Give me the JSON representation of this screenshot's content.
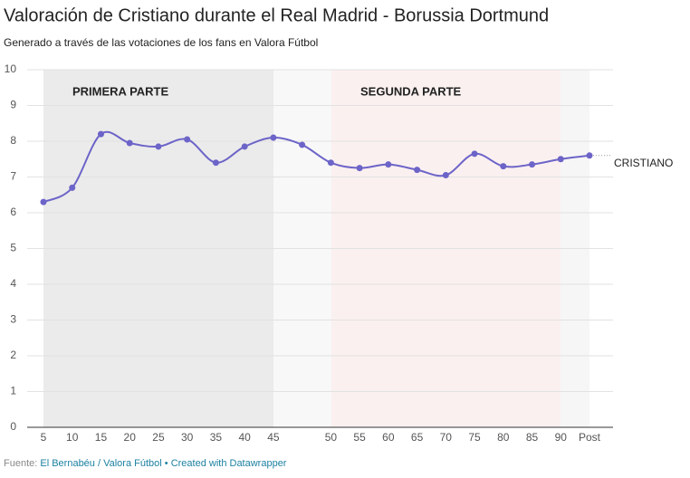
{
  "chart_data": {
    "type": "line",
    "title": "Valoración de Cristiano durante el Real Madrid - Borussia Dortmund",
    "subtitle": "Generado a través de las votaciones de los fans en Valora Fútbol",
    "categories": [
      "5",
      "10",
      "15",
      "20",
      "25",
      "30",
      "35",
      "40",
      "45",
      null,
      "50",
      "55",
      "60",
      "65",
      "70",
      "75",
      "80",
      "85",
      "90",
      "Post"
    ],
    "series": [
      {
        "name": "CRISTIANO",
        "color": "#6c64c8",
        "values": [
          6.3,
          6.7,
          8.2,
          7.95,
          7.85,
          8.05,
          7.4,
          7.85,
          8.1,
          7.9,
          7.4,
          7.25,
          7.35,
          7.2,
          7.05,
          7.65,
          7.3,
          7.35,
          7.5,
          7.6
        ]
      }
    ],
    "annotations": [
      "PRIMERA PARTE",
      "SEGUNDA PARTE"
    ],
    "ylim": [
      0,
      10
    ],
    "yticks": [
      0,
      1,
      2,
      3,
      4,
      5,
      6,
      7,
      8,
      9,
      10
    ],
    "grid": true,
    "source": {
      "label": "Fuente:",
      "text": "El Bernabéu / Valora Fútbol",
      "separator": "•",
      "credit": "Created with Datawrapper"
    }
  }
}
